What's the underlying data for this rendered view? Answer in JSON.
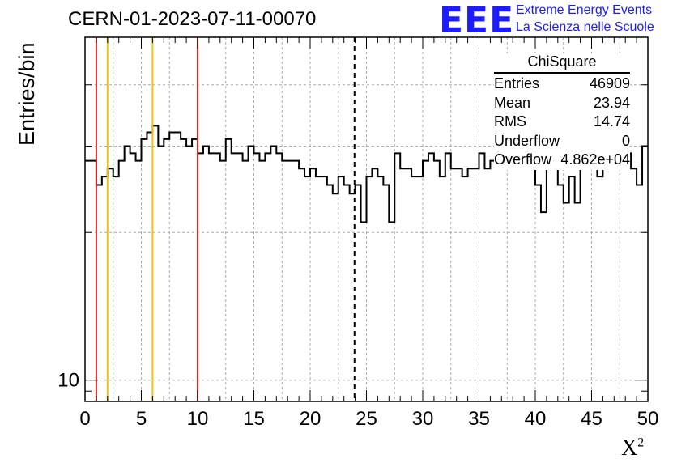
{
  "header": {
    "title": "CERN-01-2023-07-11-00070",
    "logo_text": "EEE",
    "subtitle_line1": "Extreme Energy Events",
    "subtitle_line2": "La Scienza nelle Scuole"
  },
  "stats": {
    "name": "ChiSquare",
    "rows": [
      {
        "key": "Entries",
        "value": "46909"
      },
      {
        "key": "Mean",
        "value": "23.94"
      },
      {
        "key": "RMS",
        "value": "14.74"
      },
      {
        "key": "Underflow",
        "value": "0"
      },
      {
        "key": "Overflow",
        "value": "4.862e+04"
      }
    ]
  },
  "chart_data": {
    "type": "histogram",
    "title": "CERN-01-2023-07-11-00070",
    "xlabel": "X²",
    "ylabel": "Entries/bin",
    "xlim": [
      0,
      50
    ],
    "ylim": [
      9.05,
      50
    ],
    "log_y": true,
    "grid": true,
    "x_ticks": [
      "0",
      "5",
      "10",
      "15",
      "20",
      "25",
      "30",
      "35",
      "40",
      "45",
      "50"
    ],
    "y_ticks": [
      "10"
    ],
    "bin_width": 0.5,
    "values": [
      28,
      28,
      25,
      26,
      27,
      26,
      28,
      30,
      29,
      28,
      31,
      32,
      33,
      30,
      31,
      32,
      32,
      31,
      30,
      31,
      29,
      30,
      29,
      29,
      28,
      31,
      29,
      29,
      28,
      30,
      29,
      28,
      29,
      30,
      29,
      28,
      28,
      28,
      27,
      26,
      27,
      26,
      26,
      25,
      24,
      26,
      25,
      24,
      25,
      21,
      26,
      27,
      26,
      25,
      21,
      29,
      27,
      27,
      26,
      26,
      28,
      29,
      28,
      26,
      29,
      27,
      27,
      26,
      27,
      27,
      29,
      27,
      28,
      27,
      29,
      30,
      27,
      27,
      27,
      27,
      25,
      22,
      27,
      27,
      25,
      23,
      26,
      23,
      27,
      27,
      28,
      26,
      30,
      29,
      28,
      29,
      29,
      27,
      25,
      30
    ],
    "vertical_lines": [
      {
        "x": 1,
        "color": "#e8231d",
        "style": "solid"
      },
      {
        "x": 2,
        "color": "#f4c20d",
        "style": "solid"
      },
      {
        "x": 6,
        "color": "#f4c20d",
        "style": "solid"
      },
      {
        "x": 10,
        "color": "#e8231d",
        "style": "solid"
      },
      {
        "x": 23.94,
        "color": "#000000",
        "style": "dashed"
      }
    ]
  }
}
